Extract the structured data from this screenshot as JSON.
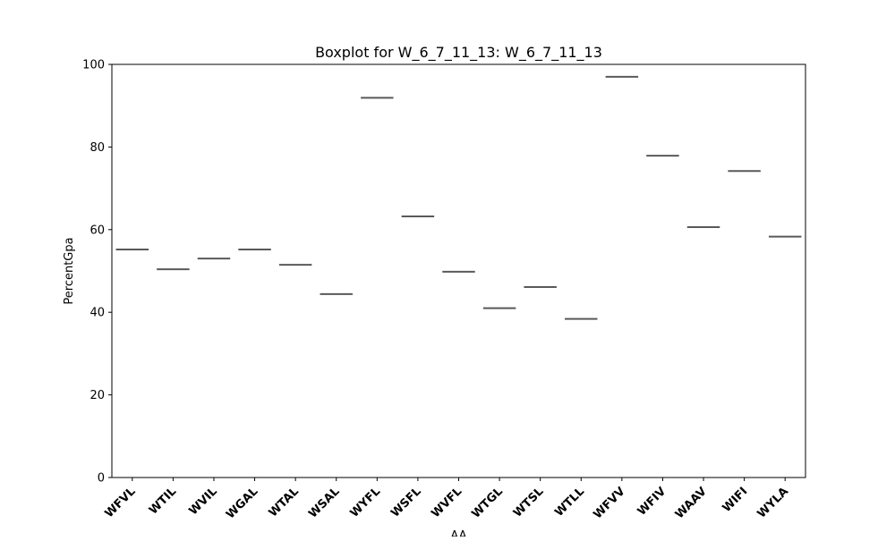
{
  "chart_data": {
    "type": "box",
    "title": "Boxplot for W_6_7_11_13: W_6_7_11_13",
    "xlabel": "AA",
    "ylabel": "PercentGpa",
    "ylim": [
      0,
      100
    ],
    "yticks": [
      "0",
      "20",
      "40",
      "60",
      "80",
      "100"
    ],
    "categories": [
      "WFVL",
      "WTIL",
      "WVIL",
      "WGAL",
      "WTAL",
      "WSAL",
      "WYFL",
      "WSFL",
      "WVFL",
      "WTGL",
      "WTSL",
      "WTLL",
      "WFVV",
      "WFIV",
      "WAAV",
      "WIFI",
      "WYLA"
    ],
    "values": [
      55.2,
      50.4,
      53.0,
      55.2,
      51.5,
      44.4,
      91.9,
      63.2,
      49.8,
      41.0,
      46.1,
      38.4,
      97.0,
      77.9,
      60.6,
      74.2,
      58.3
    ],
    "grid": false,
    "line_color": "#595959"
  }
}
